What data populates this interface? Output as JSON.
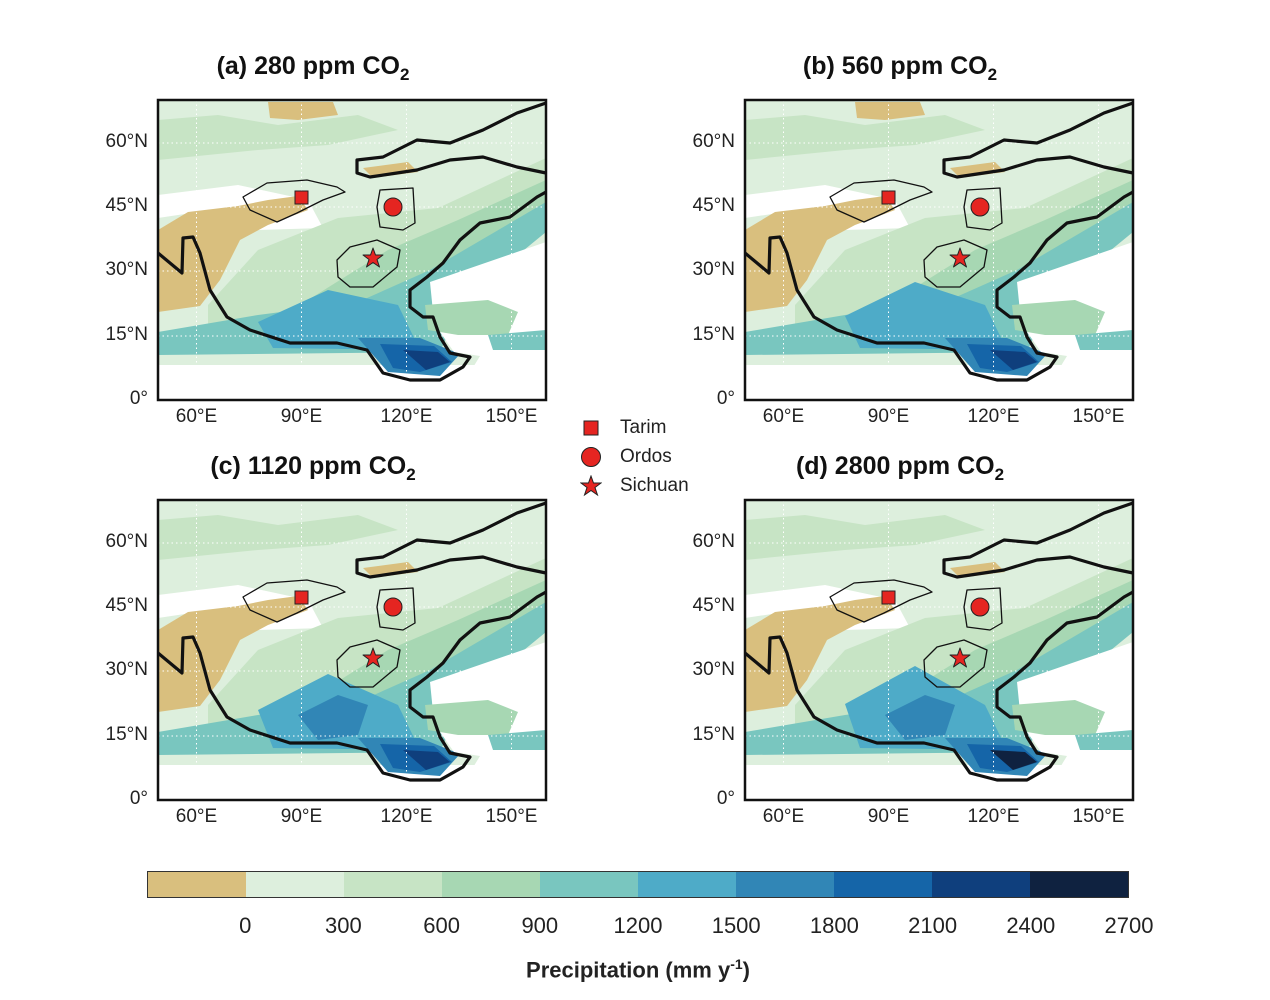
{
  "panels": [
    {
      "title": "(a) 280 ppm CO",
      "title_sub": "2",
      "variant": "a"
    },
    {
      "title": "(b) 560 ppm CO",
      "title_sub": "2",
      "variant": "b"
    },
    {
      "title": "(c) 1120 ppm CO",
      "title_sub": "2",
      "variant": "c"
    },
    {
      "title": "(d) 2800 ppm CO",
      "title_sub": "2",
      "variant": "d"
    }
  ],
  "lat_ticks": [
    "0°",
    "15°N",
    "30°N",
    "45°N",
    "60°N"
  ],
  "lon_ticks": [
    "60°E",
    "90°E",
    "120°E",
    "150°E"
  ],
  "legend": [
    {
      "label": "Tarim",
      "marker": "square",
      "color": "#e52521"
    },
    {
      "label": "Ordos",
      "marker": "circle",
      "color": "#e52521"
    },
    {
      "label": "Sichuan",
      "marker": "star",
      "color": "#e52521"
    }
  ],
  "colorbar": {
    "colors": [
      "#d9bf7e",
      "#ddefdd",
      "#c7e4c5",
      "#a7d7b3",
      "#79c6bf",
      "#4eabc8",
      "#3186b6",
      "#1565a8",
      "#0f3f7d",
      "#0f2240"
    ],
    "ticks": [
      "0",
      "300",
      "600",
      "900",
      "1200",
      "1500",
      "1800",
      "2100",
      "2400",
      "2700"
    ],
    "label": "Precipitation (mm y",
    "label_sup": "-1",
    "label_end": ")"
  }
}
